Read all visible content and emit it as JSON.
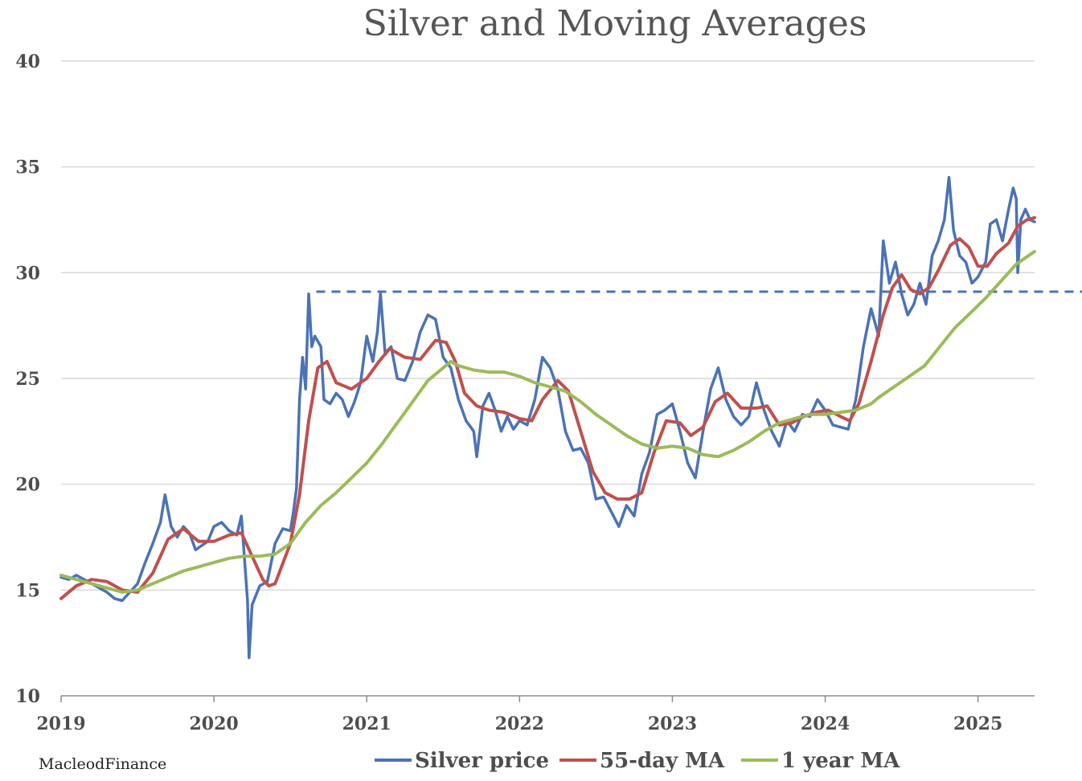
{
  "chart_data": {
    "type": "line",
    "title": "Silver and Moving Averages",
    "xlabel": "",
    "ylabel": "",
    "source": "MacleodFinance",
    "xlim": [
      2019.0,
      2025.37
    ],
    "ylim": [
      10,
      40
    ],
    "x_ticks": [
      "2019",
      "2020",
      "2021",
      "2022",
      "2023",
      "2024",
      "2025"
    ],
    "y_ticks": [
      "10",
      "15",
      "20",
      "25",
      "30",
      "35",
      "40"
    ],
    "grid": "horizontal",
    "legend_position": "bottom",
    "reference_line": {
      "y": 29.1,
      "x_start": 2020.67,
      "style": "dashed",
      "color": "#4a72b8"
    },
    "series": [
      {
        "name": "Silver price",
        "color": "#4a72b8",
        "points": [
          [
            2019.0,
            15.6
          ],
          [
            2019.05,
            15.5
          ],
          [
            2019.1,
            15.7
          ],
          [
            2019.15,
            15.5
          ],
          [
            2019.2,
            15.3
          ],
          [
            2019.25,
            15.1
          ],
          [
            2019.3,
            14.9
          ],
          [
            2019.35,
            14.6
          ],
          [
            2019.4,
            14.5
          ],
          [
            2019.45,
            14.9
          ],
          [
            2019.5,
            15.3
          ],
          [
            2019.55,
            16.3
          ],
          [
            2019.6,
            17.2
          ],
          [
            2019.65,
            18.2
          ],
          [
            2019.68,
            19.5
          ],
          [
            2019.72,
            18.0
          ],
          [
            2019.76,
            17.5
          ],
          [
            2019.8,
            18.0
          ],
          [
            2019.84,
            17.7
          ],
          [
            2019.88,
            16.9
          ],
          [
            2019.92,
            17.1
          ],
          [
            2019.96,
            17.3
          ],
          [
            2020.0,
            18.0
          ],
          [
            2020.05,
            18.2
          ],
          [
            2020.1,
            17.8
          ],
          [
            2020.15,
            17.6
          ],
          [
            2020.18,
            18.5
          ],
          [
            2020.2,
            16.5
          ],
          [
            2020.22,
            14.5
          ],
          [
            2020.23,
            11.8
          ],
          [
            2020.25,
            14.3
          ],
          [
            2020.3,
            15.2
          ],
          [
            2020.35,
            15.4
          ],
          [
            2020.4,
            17.2
          ],
          [
            2020.45,
            17.9
          ],
          [
            2020.5,
            17.8
          ],
          [
            2020.52,
            18.7
          ],
          [
            2020.54,
            19.8
          ],
          [
            2020.56,
            24.0
          ],
          [
            2020.58,
            26.0
          ],
          [
            2020.6,
            24.5
          ],
          [
            2020.62,
            29.0
          ],
          [
            2020.64,
            26.5
          ],
          [
            2020.66,
            27.0
          ],
          [
            2020.7,
            26.5
          ],
          [
            2020.72,
            24.0
          ],
          [
            2020.76,
            23.8
          ],
          [
            2020.8,
            24.3
          ],
          [
            2020.84,
            24.0
          ],
          [
            2020.88,
            23.2
          ],
          [
            2020.92,
            23.9
          ],
          [
            2020.96,
            24.8
          ],
          [
            2021.0,
            27.0
          ],
          [
            2021.04,
            25.8
          ],
          [
            2021.07,
            27.2
          ],
          [
            2021.09,
            29.0
          ],
          [
            2021.12,
            26.2
          ],
          [
            2021.16,
            26.5
          ],
          [
            2021.2,
            25.0
          ],
          [
            2021.25,
            24.9
          ],
          [
            2021.3,
            25.8
          ],
          [
            2021.35,
            27.2
          ],
          [
            2021.4,
            28.0
          ],
          [
            2021.45,
            27.8
          ],
          [
            2021.5,
            26.0
          ],
          [
            2021.55,
            25.5
          ],
          [
            2021.6,
            24.0
          ],
          [
            2021.65,
            23.0
          ],
          [
            2021.7,
            22.5
          ],
          [
            2021.72,
            21.3
          ],
          [
            2021.76,
            23.7
          ],
          [
            2021.8,
            24.3
          ],
          [
            2021.84,
            23.5
          ],
          [
            2021.88,
            22.5
          ],
          [
            2021.92,
            23.2
          ],
          [
            2021.96,
            22.6
          ],
          [
            2022.0,
            23.0
          ],
          [
            2022.05,
            22.8
          ],
          [
            2022.1,
            24.0
          ],
          [
            2022.15,
            26.0
          ],
          [
            2022.2,
            25.5
          ],
          [
            2022.25,
            24.5
          ],
          [
            2022.3,
            22.5
          ],
          [
            2022.35,
            21.6
          ],
          [
            2022.4,
            21.7
          ],
          [
            2022.45,
            21.0
          ],
          [
            2022.5,
            19.3
          ],
          [
            2022.55,
            19.4
          ],
          [
            2022.6,
            18.7
          ],
          [
            2022.65,
            18.0
          ],
          [
            2022.7,
            19.0
          ],
          [
            2022.75,
            18.5
          ],
          [
            2022.8,
            20.5
          ],
          [
            2022.85,
            21.5
          ],
          [
            2022.9,
            23.3
          ],
          [
            2022.95,
            23.5
          ],
          [
            2023.0,
            23.8
          ],
          [
            2023.05,
            22.5
          ],
          [
            2023.1,
            21.0
          ],
          [
            2023.15,
            20.3
          ],
          [
            2023.2,
            22.5
          ],
          [
            2023.25,
            24.5
          ],
          [
            2023.3,
            25.5
          ],
          [
            2023.35,
            24.0
          ],
          [
            2023.4,
            23.2
          ],
          [
            2023.45,
            22.8
          ],
          [
            2023.5,
            23.2
          ],
          [
            2023.55,
            24.8
          ],
          [
            2023.6,
            23.5
          ],
          [
            2023.65,
            22.5
          ],
          [
            2023.7,
            21.8
          ],
          [
            2023.75,
            23.0
          ],
          [
            2023.8,
            22.5
          ],
          [
            2023.85,
            23.3
          ],
          [
            2023.9,
            23.2
          ],
          [
            2023.95,
            24.0
          ],
          [
            2024.0,
            23.5
          ],
          [
            2024.05,
            22.8
          ],
          [
            2024.1,
            22.7
          ],
          [
            2024.15,
            22.6
          ],
          [
            2024.2,
            24.0
          ],
          [
            2024.25,
            26.5
          ],
          [
            2024.3,
            28.3
          ],
          [
            2024.35,
            27.0
          ],
          [
            2024.38,
            31.5
          ],
          [
            2024.42,
            29.5
          ],
          [
            2024.46,
            30.5
          ],
          [
            2024.5,
            29.0
          ],
          [
            2024.54,
            28.0
          ],
          [
            2024.58,
            28.5
          ],
          [
            2024.62,
            29.5
          ],
          [
            2024.66,
            28.5
          ],
          [
            2024.7,
            30.8
          ],
          [
            2024.74,
            31.5
          ],
          [
            2024.78,
            32.5
          ],
          [
            2024.81,
            34.5
          ],
          [
            2024.84,
            32.0
          ],
          [
            2024.88,
            30.8
          ],
          [
            2024.92,
            30.5
          ],
          [
            2024.96,
            29.5
          ],
          [
            2025.0,
            29.8
          ],
          [
            2025.05,
            30.5
          ],
          [
            2025.08,
            32.3
          ],
          [
            2025.12,
            32.5
          ],
          [
            2025.16,
            31.5
          ],
          [
            2025.2,
            33.0
          ],
          [
            2025.23,
            34.0
          ],
          [
            2025.25,
            33.5
          ],
          [
            2025.26,
            30.0
          ],
          [
            2025.28,
            32.5
          ],
          [
            2025.31,
            33.0
          ],
          [
            2025.34,
            32.5
          ],
          [
            2025.37,
            32.4
          ]
        ]
      },
      {
        "name": "55-day MA",
        "color": "#c0504d",
        "points": [
          [
            2019.0,
            14.6
          ],
          [
            2019.1,
            15.2
          ],
          [
            2019.2,
            15.5
          ],
          [
            2019.3,
            15.4
          ],
          [
            2019.4,
            15.0
          ],
          [
            2019.5,
            14.9
          ],
          [
            2019.6,
            15.8
          ],
          [
            2019.7,
            17.4
          ],
          [
            2019.8,
            17.9
          ],
          [
            2019.9,
            17.3
          ],
          [
            2020.0,
            17.3
          ],
          [
            2020.1,
            17.6
          ],
          [
            2020.18,
            17.7
          ],
          [
            2020.25,
            16.6
          ],
          [
            2020.32,
            15.5
          ],
          [
            2020.36,
            15.2
          ],
          [
            2020.4,
            15.3
          ],
          [
            2020.5,
            17.2
          ],
          [
            2020.56,
            19.5
          ],
          [
            2020.62,
            23.0
          ],
          [
            2020.68,
            25.5
          ],
          [
            2020.74,
            25.8
          ],
          [
            2020.8,
            24.8
          ],
          [
            2020.9,
            24.5
          ],
          [
            2021.0,
            25.0
          ],
          [
            2021.08,
            25.8
          ],
          [
            2021.15,
            26.4
          ],
          [
            2021.25,
            26.0
          ],
          [
            2021.35,
            25.9
          ],
          [
            2021.45,
            26.8
          ],
          [
            2021.52,
            26.7
          ],
          [
            2021.58,
            25.8
          ],
          [
            2021.64,
            24.3
          ],
          [
            2021.72,
            23.7
          ],
          [
            2021.8,
            23.5
          ],
          [
            2021.9,
            23.4
          ],
          [
            2022.0,
            23.1
          ],
          [
            2022.08,
            23.0
          ],
          [
            2022.15,
            24.0
          ],
          [
            2022.25,
            24.9
          ],
          [
            2022.32,
            24.4
          ],
          [
            2022.4,
            22.5
          ],
          [
            2022.48,
            20.6
          ],
          [
            2022.56,
            19.6
          ],
          [
            2022.64,
            19.3
          ],
          [
            2022.72,
            19.3
          ],
          [
            2022.8,
            19.6
          ],
          [
            2022.88,
            21.5
          ],
          [
            2022.96,
            23.0
          ],
          [
            2023.05,
            22.9
          ],
          [
            2023.12,
            22.3
          ],
          [
            2023.2,
            22.7
          ],
          [
            2023.28,
            23.9
          ],
          [
            2023.36,
            24.3
          ],
          [
            2023.45,
            23.6
          ],
          [
            2023.55,
            23.6
          ],
          [
            2023.62,
            23.7
          ],
          [
            2023.7,
            22.8
          ],
          [
            2023.78,
            22.9
          ],
          [
            2023.86,
            23.2
          ],
          [
            2023.94,
            23.4
          ],
          [
            2024.02,
            23.5
          ],
          [
            2024.1,
            23.2
          ],
          [
            2024.16,
            23.0
          ],
          [
            2024.22,
            23.8
          ],
          [
            2024.3,
            25.8
          ],
          [
            2024.38,
            28.0
          ],
          [
            2024.44,
            29.3
          ],
          [
            2024.5,
            29.9
          ],
          [
            2024.56,
            29.2
          ],
          [
            2024.62,
            29.0
          ],
          [
            2024.68,
            29.3
          ],
          [
            2024.74,
            30.1
          ],
          [
            2024.82,
            31.3
          ],
          [
            2024.88,
            31.6
          ],
          [
            2024.94,
            31.2
          ],
          [
            2025.0,
            30.3
          ],
          [
            2025.06,
            30.3
          ],
          [
            2025.12,
            30.9
          ],
          [
            2025.2,
            31.4
          ],
          [
            2025.26,
            32.2
          ],
          [
            2025.32,
            32.5
          ],
          [
            2025.37,
            32.6
          ]
        ]
      },
      {
        "name": "1 year MA",
        "color": "#9bbb59",
        "points": [
          [
            2019.0,
            15.7
          ],
          [
            2019.1,
            15.5
          ],
          [
            2019.2,
            15.3
          ],
          [
            2019.3,
            15.1
          ],
          [
            2019.4,
            14.9
          ],
          [
            2019.5,
            15.0
          ],
          [
            2019.6,
            15.3
          ],
          [
            2019.7,
            15.6
          ],
          [
            2019.8,
            15.9
          ],
          [
            2019.9,
            16.1
          ],
          [
            2020.0,
            16.3
          ],
          [
            2020.1,
            16.5
          ],
          [
            2020.2,
            16.6
          ],
          [
            2020.3,
            16.6
          ],
          [
            2020.4,
            16.7
          ],
          [
            2020.5,
            17.2
          ],
          [
            2020.6,
            18.2
          ],
          [
            2020.7,
            19.0
          ],
          [
            2020.8,
            19.6
          ],
          [
            2020.9,
            20.3
          ],
          [
            2021.0,
            21.0
          ],
          [
            2021.1,
            21.9
          ],
          [
            2021.2,
            22.9
          ],
          [
            2021.3,
            23.9
          ],
          [
            2021.4,
            24.9
          ],
          [
            2021.5,
            25.5
          ],
          [
            2021.55,
            25.8
          ],
          [
            2021.6,
            25.6
          ],
          [
            2021.7,
            25.4
          ],
          [
            2021.8,
            25.3
          ],
          [
            2021.9,
            25.3
          ],
          [
            2022.0,
            25.1
          ],
          [
            2022.1,
            24.8
          ],
          [
            2022.2,
            24.6
          ],
          [
            2022.3,
            24.4
          ],
          [
            2022.4,
            23.9
          ],
          [
            2022.5,
            23.3
          ],
          [
            2022.6,
            22.8
          ],
          [
            2022.7,
            22.3
          ],
          [
            2022.8,
            21.9
          ],
          [
            2022.9,
            21.7
          ],
          [
            2023.0,
            21.8
          ],
          [
            2023.1,
            21.7
          ],
          [
            2023.2,
            21.4
          ],
          [
            2023.3,
            21.3
          ],
          [
            2023.4,
            21.6
          ],
          [
            2023.5,
            22.0
          ],
          [
            2023.6,
            22.5
          ],
          [
            2023.7,
            22.9
          ],
          [
            2023.8,
            23.1
          ],
          [
            2023.9,
            23.3
          ],
          [
            2024.0,
            23.3
          ],
          [
            2024.1,
            23.4
          ],
          [
            2024.2,
            23.5
          ],
          [
            2024.3,
            23.8
          ],
          [
            2024.35,
            24.1
          ],
          [
            2024.45,
            24.6
          ],
          [
            2024.55,
            25.1
          ],
          [
            2024.65,
            25.6
          ],
          [
            2024.75,
            26.5
          ],
          [
            2024.85,
            27.4
          ],
          [
            2024.95,
            28.1
          ],
          [
            2025.05,
            28.8
          ],
          [
            2025.15,
            29.6
          ],
          [
            2025.25,
            30.4
          ],
          [
            2025.37,
            31.0
          ]
        ]
      }
    ]
  }
}
